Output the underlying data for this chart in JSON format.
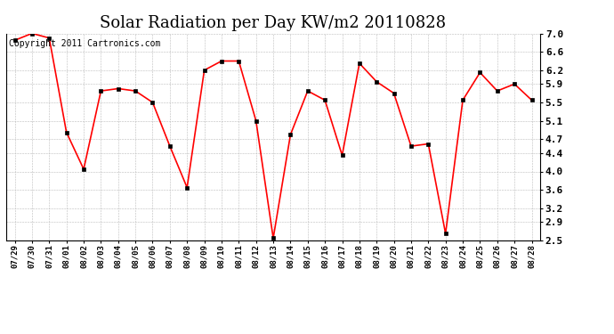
{
  "title": "Solar Radiation per Day KW/m2 20110828",
  "copyright_text": "Copyright 2011 Cartronics.com",
  "dates": [
    "07/29",
    "07/30",
    "07/31",
    "08/01",
    "08/02",
    "08/03",
    "08/04",
    "08/05",
    "08/06",
    "08/07",
    "08/08",
    "08/09",
    "08/10",
    "08/11",
    "08/12",
    "08/13",
    "08/14",
    "08/15",
    "08/16",
    "08/17",
    "08/18",
    "08/19",
    "08/20",
    "08/21",
    "08/22",
    "08/23",
    "08/24",
    "08/25",
    "08/26",
    "08/27",
    "08/28"
  ],
  "values": [
    6.85,
    7.0,
    6.9,
    4.85,
    4.05,
    5.75,
    5.8,
    5.75,
    5.5,
    4.55,
    3.65,
    6.2,
    6.4,
    6.4,
    5.1,
    2.55,
    4.8,
    5.75,
    5.55,
    4.35,
    6.35,
    5.95,
    5.7,
    4.55,
    4.6,
    2.65,
    5.55,
    6.15,
    5.75,
    5.9,
    5.55
  ],
  "ylim": [
    2.5,
    7.0
  ],
  "yticks": [
    2.5,
    2.9,
    3.2,
    3.6,
    4.0,
    4.4,
    4.7,
    5.1,
    5.5,
    5.9,
    6.2,
    6.6,
    7.0
  ],
  "line_color": "red",
  "marker_color": "black",
  "bg_color": "#ffffff",
  "grid_color": "#bbbbbb",
  "title_fontsize": 13,
  "copyright_fontsize": 7,
  "tick_fontsize": 8,
  "xtick_fontsize": 6.5
}
